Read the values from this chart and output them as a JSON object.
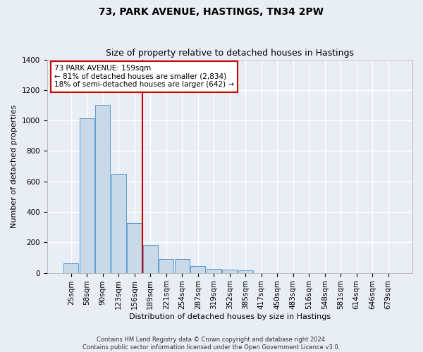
{
  "title": "73, PARK AVENUE, HASTINGS, TN34 2PW",
  "subtitle": "Size of property relative to detached houses in Hastings",
  "xlabel": "Distribution of detached houses by size in Hastings",
  "ylabel": "Number of detached properties",
  "categories": [
    "25sqm",
    "58sqm",
    "90sqm",
    "123sqm",
    "156sqm",
    "189sqm",
    "221sqm",
    "254sqm",
    "287sqm",
    "319sqm",
    "352sqm",
    "385sqm",
    "417sqm",
    "450sqm",
    "483sqm",
    "516sqm",
    "548sqm",
    "581sqm",
    "614sqm",
    "646sqm",
    "679sqm"
  ],
  "values": [
    65,
    1015,
    1100,
    650,
    325,
    185,
    90,
    90,
    45,
    28,
    22,
    15,
    0,
    0,
    0,
    0,
    0,
    0,
    0,
    0,
    0
  ],
  "bar_color": "#c9d9e8",
  "bar_edge_color": "#5b9bd5",
  "annotation_text_line1": "73 PARK AVENUE: 159sqm",
  "annotation_text_line2": "← 81% of detached houses are smaller (2,834)",
  "annotation_text_line3": "18% of semi-detached houses are larger (642) →",
  "annotation_box_color": "#ffffff",
  "annotation_box_edge_color": "#cc0000",
  "vline_color": "#cc0000",
  "vline_x": 4.5,
  "ylim": [
    0,
    1400
  ],
  "yticks": [
    0,
    200,
    400,
    600,
    800,
    1000,
    1200,
    1400
  ],
  "footer_line1": "Contains HM Land Registry data © Crown copyright and database right 2024.",
  "footer_line2": "Contains public sector information licensed under the Open Government Licence v3.0.",
  "background_color": "#e8eef4",
  "grid_color": "#ffffff",
  "title_fontsize": 10,
  "subtitle_fontsize": 9,
  "xlabel_fontsize": 8,
  "ylabel_fontsize": 8,
  "tick_fontsize": 7.5,
  "annotation_fontsize": 7.5,
  "footer_fontsize": 6
}
